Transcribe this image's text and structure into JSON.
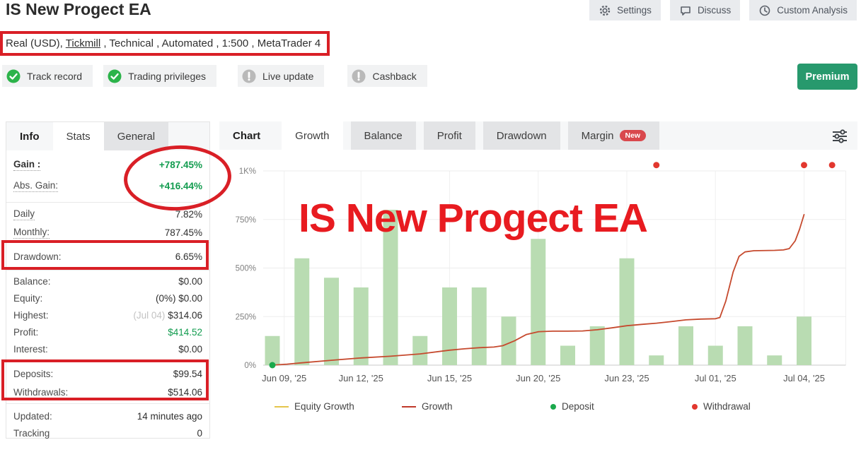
{
  "header": {
    "title": "IS New Progect EA",
    "actions": [
      {
        "name": "settings-button",
        "icon": "gear-icon",
        "label": "Settings"
      },
      {
        "name": "discuss-button",
        "icon": "speech-bubble-icon",
        "label": "Discuss"
      },
      {
        "name": "custom-analysis-button",
        "icon": "clock-icon",
        "label": "Custom Analysis"
      }
    ],
    "subtitle": {
      "prefix": "Real (USD), ",
      "link": "Tickmill",
      "suffix": " , Technical , Automated , 1:500 , MetaTrader 4"
    },
    "badges": [
      {
        "label": "Track record",
        "status": "ok"
      },
      {
        "label": "Trading privileges",
        "status": "ok"
      },
      {
        "label": "Live update",
        "status": "na"
      },
      {
        "label": "Cashback",
        "status": "na"
      }
    ],
    "premium_label": "Premium"
  },
  "stats_panel": {
    "tabs": [
      {
        "label": "Info",
        "style": "lbl"
      },
      {
        "label": "Stats",
        "style": "active"
      },
      {
        "label": "General",
        "style": "inactive"
      }
    ],
    "groups": [
      {
        "rows": [
          {
            "label": "Gain :",
            "value": "+787.45%",
            "label_bold": true,
            "dotted": true,
            "value_color": "green",
            "value_bold": true
          },
          {
            "label": "Abs. Gain:",
            "value": "+416.44%",
            "dotted": true,
            "value_color": "green",
            "value_bold": true
          }
        ]
      },
      {
        "rows": [
          {
            "label": "Daily",
            "value": "7.82%",
            "dotted": true
          },
          {
            "label": "Monthly:",
            "value": "787.45%",
            "dotted": true
          }
        ]
      },
      {
        "rows": [
          {
            "label": "Drawdown:",
            "value": "6.65%"
          }
        ]
      },
      {
        "rows": [
          {
            "label": "Balance:",
            "value": "$0.00"
          },
          {
            "label": "Equity:",
            "value": "(0%) $0.00"
          },
          {
            "label": "Highest:",
            "prefix": "(Jul 04) ",
            "value": "$314.06"
          },
          {
            "label": "Profit:",
            "value": "$414.52",
            "value_color": "green"
          },
          {
            "label": "Interest:",
            "value": "$0.00"
          }
        ]
      },
      {
        "rows": [
          {
            "label": "Deposits:",
            "value": "$99.54"
          },
          {
            "label": "Withdrawals:",
            "value": "$514.06"
          }
        ]
      },
      {
        "rows": [
          {
            "label": "Updated:",
            "value": "14 minutes ago"
          },
          {
            "label": "Tracking",
            "value": "0"
          }
        ]
      }
    ]
  },
  "chart_panel": {
    "tabs": [
      {
        "label": "Chart",
        "style": "lbl"
      },
      {
        "label": "Growth",
        "style": "active"
      },
      {
        "label": "Balance",
        "style": "inactive"
      },
      {
        "label": "Profit",
        "style": "inactive"
      },
      {
        "label": "Drawdown",
        "style": "inactive"
      },
      {
        "label": "Margin",
        "style": "inactive",
        "badge": "New"
      }
    ],
    "watermark": "IS New Progect EA",
    "legend": [
      {
        "label": "Equity Growth",
        "swatch": "line",
        "color": "#e5c54b"
      },
      {
        "label": "Growth",
        "swatch": "line",
        "color": "#c0392b"
      },
      {
        "label": "Deposit",
        "swatch": "dot",
        "color": "#1ba94c"
      },
      {
        "label": "Withdrawal",
        "swatch": "dot",
        "color": "#e2372e"
      }
    ]
  },
  "chart_data": {
    "type": "bar+line",
    "title": "Growth chart",
    "ylim": [
      0,
      1000
    ],
    "grid": true,
    "y_ticks": [
      {
        "v": 0,
        "label": "0%"
      },
      {
        "v": 250,
        "label": "250%"
      },
      {
        "v": 500,
        "label": "500%"
      },
      {
        "v": 750,
        "label": "750%"
      },
      {
        "v": 1000,
        "label": "1K%"
      }
    ],
    "x_ticks": [
      {
        "i": 0.4,
        "label": "Jun 09, '25"
      },
      {
        "i": 3,
        "label": "Jun 12, '25"
      },
      {
        "i": 6,
        "label": "Jun 15, '25"
      },
      {
        "i": 9,
        "label": "Jun 20, '25"
      },
      {
        "i": 12,
        "label": "Jun 23, '25"
      },
      {
        "i": 15,
        "label": "Jul 01, '25"
      },
      {
        "i": 18,
        "label": "Jul 04, '25"
      }
    ],
    "bars": {
      "name": "Daily gain bars",
      "color": "#b9dcb2",
      "values": [
        150,
        550,
        450,
        400,
        800,
        150,
        400,
        400,
        250,
        650,
        100,
        200,
        550,
        50,
        200,
        100,
        200,
        50,
        250
      ]
    },
    "line": {
      "name": "Growth",
      "color": "#c64a2e",
      "points": [
        [
          0,
          0
        ],
        [
          0.5,
          5
        ],
        [
          1,
          12
        ],
        [
          2,
          25
        ],
        [
          3,
          37
        ],
        [
          4,
          46
        ],
        [
          5,
          58
        ],
        [
          6,
          77
        ],
        [
          6.5,
          84
        ],
        [
          7,
          90
        ],
        [
          7.5,
          93
        ],
        [
          7.8,
          100
        ],
        [
          8.2,
          125
        ],
        [
          8.6,
          158
        ],
        [
          9,
          172
        ],
        [
          9.5,
          175
        ],
        [
          10,
          175
        ],
        [
          10.5,
          176
        ],
        [
          11,
          182
        ],
        [
          11.5,
          192
        ],
        [
          12,
          203
        ],
        [
          12.5,
          210
        ],
        [
          13,
          216
        ],
        [
          13.5,
          224
        ],
        [
          14,
          233
        ],
        [
          14.5,
          237
        ],
        [
          15,
          239
        ],
        [
          15.15,
          245
        ],
        [
          15.35,
          330
        ],
        [
          15.6,
          480
        ],
        [
          15.8,
          560
        ],
        [
          16,
          583
        ],
        [
          16.3,
          589
        ],
        [
          17,
          591
        ],
        [
          17.3,
          593
        ],
        [
          17.5,
          600
        ],
        [
          17.7,
          640
        ],
        [
          17.85,
          700
        ],
        [
          18,
          775
        ]
      ]
    },
    "deposits": {
      "name": "Deposit",
      "color": "#1ba94c",
      "points": [
        [
          0,
          0
        ]
      ]
    },
    "withdrawals": {
      "name": "Withdrawal",
      "color": "#e2372e",
      "points": [
        [
          13,
          1030
        ],
        [
          18,
          1030
        ],
        [
          18.95,
          1030
        ]
      ]
    }
  },
  "colors": {
    "annotation_red": "#d91f26",
    "gain_green": "#129c4f",
    "premium_green": "#27996d",
    "badge_ok_green": "#2cb34a",
    "badge_na_gray": "#b9b9b9",
    "watermark_red": "#e81b20",
    "new_badge_red": "#d9484d"
  }
}
